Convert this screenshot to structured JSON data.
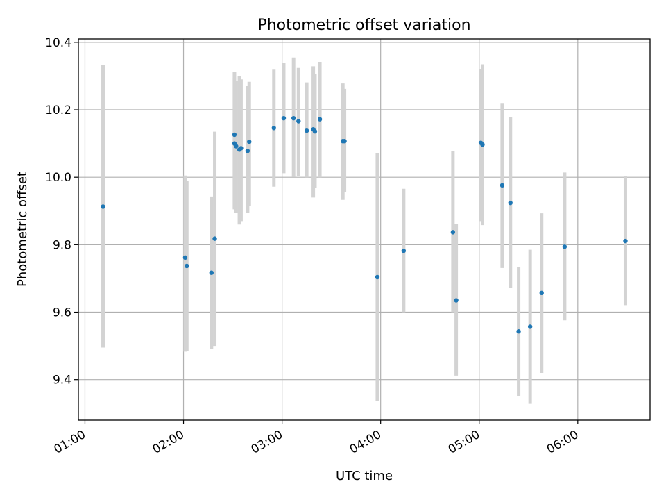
{
  "chart_data": {
    "type": "scatter",
    "title": "Photometric offset variation",
    "xlabel": "UTC time",
    "ylabel": "Photometric offset",
    "x_axis_type": "time",
    "xlim": [
      "00:56",
      "06:44"
    ],
    "ylim": [
      9.28,
      10.41
    ],
    "x_ticks": [
      "01:00",
      "02:00",
      "03:00",
      "04:00",
      "05:00",
      "06:00"
    ],
    "y_ticks": [
      9.4,
      9.6,
      9.8,
      10.0,
      10.2,
      10.4
    ],
    "y_tick_labels": [
      "9.4",
      "9.6",
      "9.8",
      "10.0",
      "10.2",
      "10.4"
    ],
    "grid": true,
    "marker_color": "#1f77b4",
    "errorbar_color": "#d3d3d3",
    "points": [
      {
        "t": "01:11",
        "y": 9.913,
        "lo": 9.495,
        "hi": 10.333
      },
      {
        "t": "02:01",
        "y": 9.762,
        "lo": 9.483,
        "hi": 10.005
      },
      {
        "t": "02:02",
        "y": 9.737,
        "lo": 9.484,
        "hi": 9.989
      },
      {
        "t": "02:17",
        "y": 9.717,
        "lo": 9.491,
        "hi": 9.943
      },
      {
        "t": "02:19",
        "y": 9.818,
        "lo": 9.5,
        "hi": 10.135
      },
      {
        "t": "02:31",
        "y": 10.126,
        "lo": 9.91,
        "hi": 10.312
      },
      {
        "t": "02:31",
        "y": 10.1,
        "lo": 9.905,
        "hi": 10.295
      },
      {
        "t": "02:32",
        "y": 10.092,
        "lo": 9.895,
        "hi": 10.285
      },
      {
        "t": "02:34",
        "y": 10.082,
        "lo": 9.86,
        "hi": 10.3
      },
      {
        "t": "02:35",
        "y": 10.086,
        "lo": 9.87,
        "hi": 10.29
      },
      {
        "t": "02:39",
        "y": 10.078,
        "lo": 9.895,
        "hi": 10.27
      },
      {
        "t": "02:40",
        "y": 10.105,
        "lo": 9.915,
        "hi": 10.283
      },
      {
        "t": "02:55",
        "y": 10.146,
        "lo": 9.972,
        "hi": 10.319
      },
      {
        "t": "03:01",
        "y": 10.175,
        "lo": 10.012,
        "hi": 10.338
      },
      {
        "t": "03:07",
        "y": 10.175,
        "lo": 10.001,
        "hi": 10.355
      },
      {
        "t": "03:10",
        "y": 10.166,
        "lo": 10.004,
        "hi": 10.324
      },
      {
        "t": "03:15",
        "y": 10.138,
        "lo": 10.0,
        "hi": 10.281
      },
      {
        "t": "03:19",
        "y": 10.142,
        "lo": 9.94,
        "hi": 10.329
      },
      {
        "t": "03:20",
        "y": 10.136,
        "lo": 9.968,
        "hi": 10.305
      },
      {
        "t": "03:23",
        "y": 10.172,
        "lo": 10.0,
        "hi": 10.342
      },
      {
        "t": "03:37",
        "y": 10.107,
        "lo": 9.933,
        "hi": 10.278
      },
      {
        "t": "03:38",
        "y": 10.107,
        "lo": 9.955,
        "hi": 10.262
      },
      {
        "t": "03:58",
        "y": 9.704,
        "lo": 9.336,
        "hi": 10.071
      },
      {
        "t": "04:14",
        "y": 9.782,
        "lo": 9.6,
        "hi": 9.966
      },
      {
        "t": "04:44",
        "y": 9.837,
        "lo": 9.6,
        "hi": 10.078
      },
      {
        "t": "04:46",
        "y": 9.635,
        "lo": 9.412,
        "hi": 9.862
      },
      {
        "t": "05:01",
        "y": 10.102,
        "lo": 9.87,
        "hi": 10.32
      },
      {
        "t": "05:02",
        "y": 10.097,
        "lo": 9.858,
        "hi": 10.335
      },
      {
        "t": "05:14",
        "y": 9.976,
        "lo": 9.731,
        "hi": 10.218
      },
      {
        "t": "05:19",
        "y": 9.924,
        "lo": 9.671,
        "hi": 10.179
      },
      {
        "t": "05:24",
        "y": 9.543,
        "lo": 9.352,
        "hi": 9.734
      },
      {
        "t": "05:31",
        "y": 9.557,
        "lo": 9.328,
        "hi": 9.785
      },
      {
        "t": "05:38",
        "y": 9.657,
        "lo": 9.42,
        "hi": 9.893
      },
      {
        "t": "05:52",
        "y": 9.794,
        "lo": 9.576,
        "hi": 10.014
      },
      {
        "t": "06:29",
        "y": 9.811,
        "lo": 9.621,
        "hi": 10.003
      }
    ]
  }
}
